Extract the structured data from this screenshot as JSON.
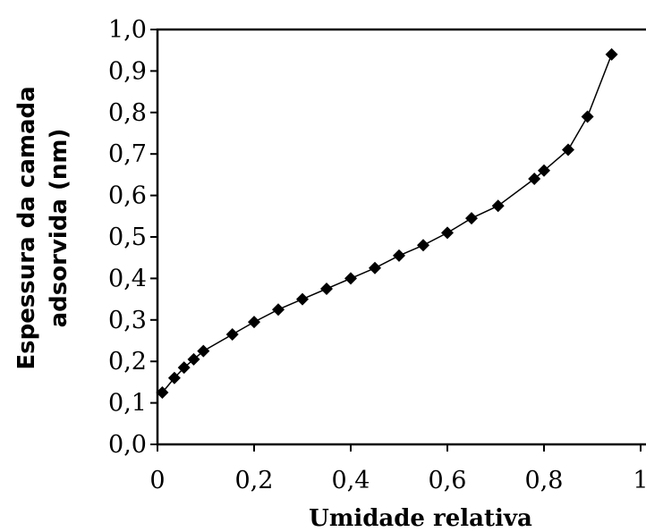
{
  "chart_data": {
    "type": "line",
    "xlabel": "Umidade relativa",
    "ylabel": [
      "Espessura da camada",
      "adsorvida (nm)"
    ],
    "xlim": [
      0,
      1
    ],
    "ylim": [
      0,
      1
    ],
    "x_ticks": [
      "0",
      "0,2",
      "0,4",
      "0,6",
      "0,8",
      "1"
    ],
    "y_ticks": [
      "0,0",
      "0,1",
      "0,2",
      "0,3",
      "0,4",
      "0,5",
      "0,6",
      "0,7",
      "0,8",
      "0,9",
      "1,0"
    ],
    "grid": false,
    "marker": "diamond",
    "line_color": "#000000",
    "series": [
      {
        "x": [
          0.01,
          0.035,
          0.055,
          0.075,
          0.095,
          0.155,
          0.2,
          0.25,
          0.3,
          0.35,
          0.4,
          0.45,
          0.5,
          0.55,
          0.6,
          0.65,
          0.705,
          0.78,
          0.8,
          0.85,
          0.89,
          0.94
        ],
        "y": [
          0.125,
          0.16,
          0.185,
          0.205,
          0.225,
          0.265,
          0.295,
          0.325,
          0.35,
          0.375,
          0.4,
          0.425,
          0.455,
          0.48,
          0.51,
          0.545,
          0.575,
          0.64,
          0.66,
          0.71,
          0.79,
          0.94
        ]
      }
    ]
  }
}
